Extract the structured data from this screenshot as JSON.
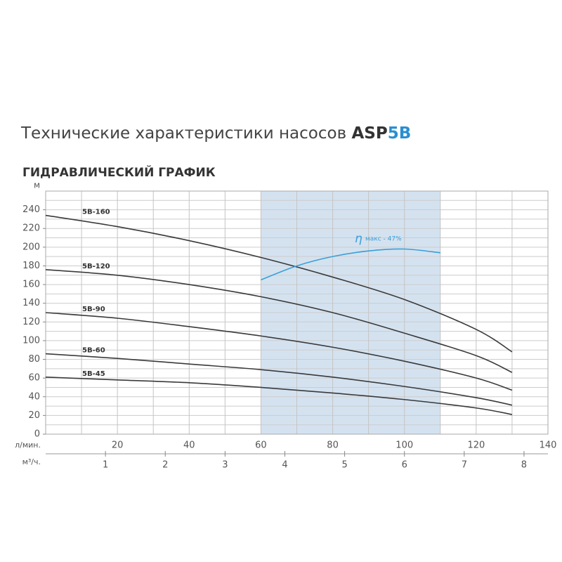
{
  "chart_data": {
    "type": "line",
    "title": "Технические характеристики насосов",
    "title_brand": "ASP",
    "title_model": "5B",
    "subtitle": "ГИДРАВЛИЧЕСКИЙ ГРАФИК",
    "ylabel": "м",
    "xlabel": "л/мин.",
    "x2label": "м³/ч.",
    "xlim": [
      0,
      140
    ],
    "xticks": [
      20,
      40,
      60,
      80,
      100,
      120,
      140
    ],
    "xgrid": [
      10,
      20,
      30,
      40,
      50,
      60,
      70,
      80,
      90,
      100,
      110,
      120,
      130
    ],
    "ylim": [
      0,
      260
    ],
    "yticks": [
      0,
      20,
      40,
      60,
      80,
      100,
      120,
      140,
      160,
      180,
      200,
      220,
      240
    ],
    "ygrid": [
      10,
      20,
      30,
      40,
      50,
      60,
      70,
      80,
      90,
      100,
      110,
      120,
      130,
      140,
      150,
      160,
      170,
      180,
      190,
      200,
      210,
      220,
      230,
      240,
      250
    ],
    "x2lim": [
      0,
      8.4
    ],
    "x2ticks": [
      1,
      2,
      3,
      4,
      5,
      6,
      7,
      8
    ],
    "recommended_range": [
      60,
      110
    ],
    "range_color": "#c9dbec",
    "x": [
      0,
      20,
      40,
      60,
      80,
      100,
      120,
      130
    ],
    "series": [
      {
        "name": "5B-160",
        "color": "#3a3a3a",
        "values": [
          234,
          222,
          207,
          189,
          168,
          144,
          112,
          88
        ]
      },
      {
        "name": "5B-120",
        "color": "#3a3a3a",
        "values": [
          176,
          170,
          160,
          147,
          130,
          108,
          84,
          66
        ]
      },
      {
        "name": "5B-90",
        "color": "#3a3a3a",
        "values": [
          130,
          124,
          115,
          105,
          93,
          78,
          60,
          47
        ]
      },
      {
        "name": "5B-60",
        "color": "#3a3a3a",
        "values": [
          86,
          81,
          75,
          69,
          61,
          51,
          39,
          31
        ]
      },
      {
        "name": "5B-45",
        "color": "#3a3a3a",
        "values": [
          61,
          58,
          55,
          50,
          44,
          37,
          28,
          21
        ]
      }
    ],
    "efficiency": {
      "symbol": "η",
      "label": "макс - 47%",
      "color": "#3a9fd6",
      "x": [
        60,
        70,
        80,
        90,
        100,
        110
      ],
      "values": [
        165,
        180,
        190,
        196,
        198,
        194
      ]
    }
  }
}
